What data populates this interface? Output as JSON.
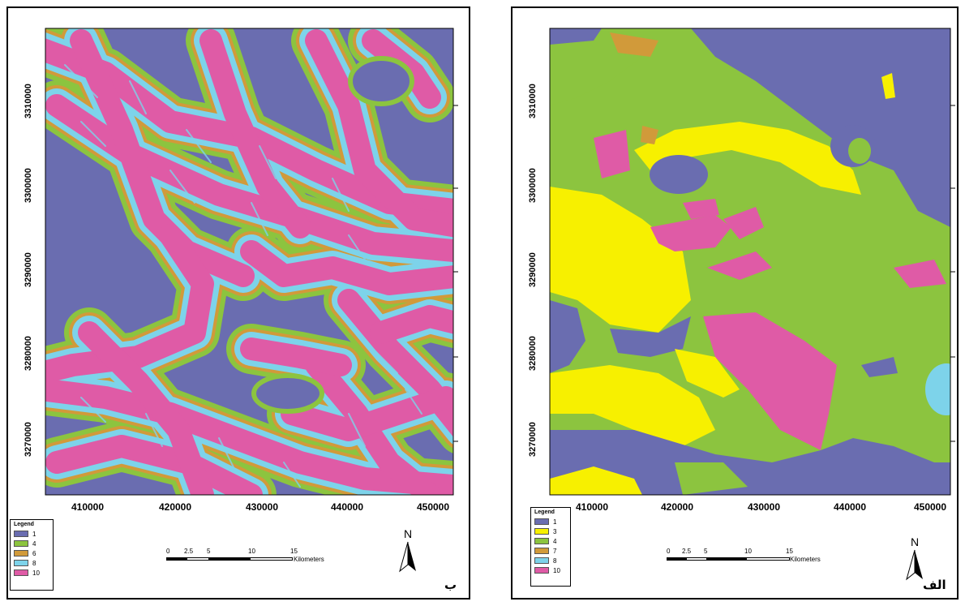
{
  "panels": [
    {
      "label": "ب",
      "y_ticks": [
        "3310000",
        "3300000",
        "3290000",
        "3280000",
        "3270000"
      ],
      "x_ticks": [
        "410000",
        "420000",
        "430000",
        "440000",
        "450000"
      ],
      "legend": {
        "title": "Legend",
        "items": [
          {
            "value": "1",
            "color": "#6a6db0"
          },
          {
            "value": "4",
            "color": "#8cc43f"
          },
          {
            "value": "6",
            "color": "#d19a3a"
          },
          {
            "value": "8",
            "color": "#7dd3ea"
          },
          {
            "value": "10",
            "color": "#df5ba6"
          }
        ]
      },
      "scale": {
        "ticks": [
          "0",
          "2.5",
          "5",
          "10",
          "15"
        ],
        "unit": "Kilometers"
      },
      "north": "N"
    },
    {
      "label": "الف",
      "y_ticks": [
        "3310000",
        "3300000",
        "3290000",
        "3280000",
        "3270000"
      ],
      "x_ticks": [
        "410000",
        "420000",
        "430000",
        "440000",
        "450000"
      ],
      "legend": {
        "title": "Legend",
        "items": [
          {
            "value": "1",
            "color": "#6a6db0"
          },
          {
            "value": "3",
            "color": "#f7f000"
          },
          {
            "value": "4",
            "color": "#8cc43f"
          },
          {
            "value": "7",
            "color": "#d19a3a"
          },
          {
            "value": "8",
            "color": "#7dd3ea"
          },
          {
            "value": "10",
            "color": "#df5ba6"
          }
        ]
      },
      "scale": {
        "ticks": [
          "0",
          "2.5",
          "5",
          "10",
          "15"
        ],
        "unit": "Kilometers"
      },
      "north": "N"
    }
  ]
}
